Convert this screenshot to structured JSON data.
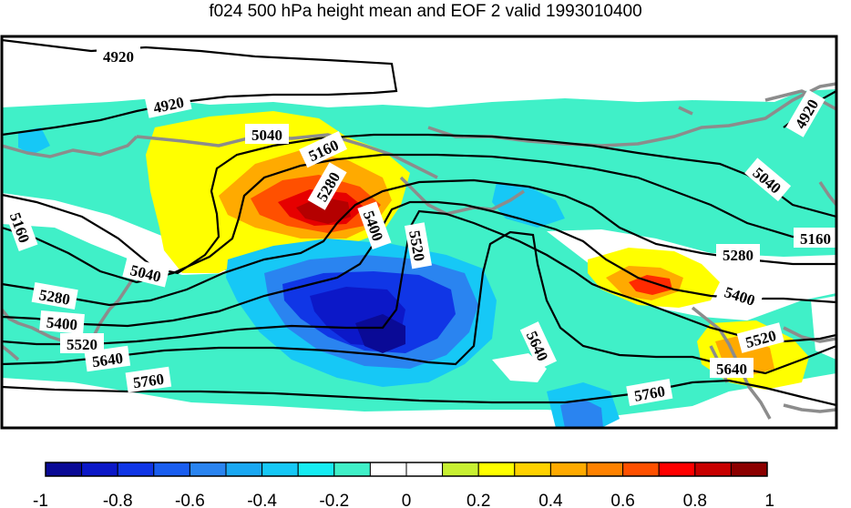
{
  "title": "f024 500 hPa height mean and EOF 2 valid 1993010400",
  "contour_levels": [
    "4920",
    "5040",
    "5160",
    "5280",
    "5400",
    "5520",
    "5640",
    "5760"
  ],
  "contour_labels": [
    {
      "text": "4920"
    },
    {
      "text": "4920"
    },
    {
      "text": "4920"
    },
    {
      "text": "5040"
    },
    {
      "text": "5040"
    },
    {
      "text": "5040"
    },
    {
      "text": "5160"
    },
    {
      "text": "5160"
    },
    {
      "text": "5160"
    },
    {
      "text": "5280"
    },
    {
      "text": "5280"
    },
    {
      "text": "5280"
    },
    {
      "text": "5400"
    },
    {
      "text": "5400"
    },
    {
      "text": "5400"
    },
    {
      "text": "5520"
    },
    {
      "text": "5520"
    },
    {
      "text": "5520"
    },
    {
      "text": "5640"
    },
    {
      "text": "5640"
    },
    {
      "text": "5640"
    },
    {
      "text": "5760"
    },
    {
      "text": "5760"
    }
  ],
  "colorbar": {
    "colors": [
      "#0a0a96",
      "#0c18c8",
      "#1036e6",
      "#1a5ef0",
      "#2a84f0",
      "#1aa8f2",
      "#16c8f6",
      "#16ecf2",
      "#40f0c8",
      "#ffffff",
      "#ffffff",
      "#c8f032",
      "#ffff00",
      "#ffd200",
      "#ffaa00",
      "#ff8200",
      "#ff5000",
      "#ff0000",
      "#c80000",
      "#8c0000"
    ],
    "tick_labels": [
      "-1",
      "-0.8",
      "-0.6",
      "-0.4",
      "-0.2",
      "0",
      "0.2",
      "0.4",
      "0.6",
      "0.8",
      "1"
    ]
  },
  "colors": {
    "coast": "#8c8c8c",
    "contour": "#000000",
    "background": "#ffffff"
  }
}
